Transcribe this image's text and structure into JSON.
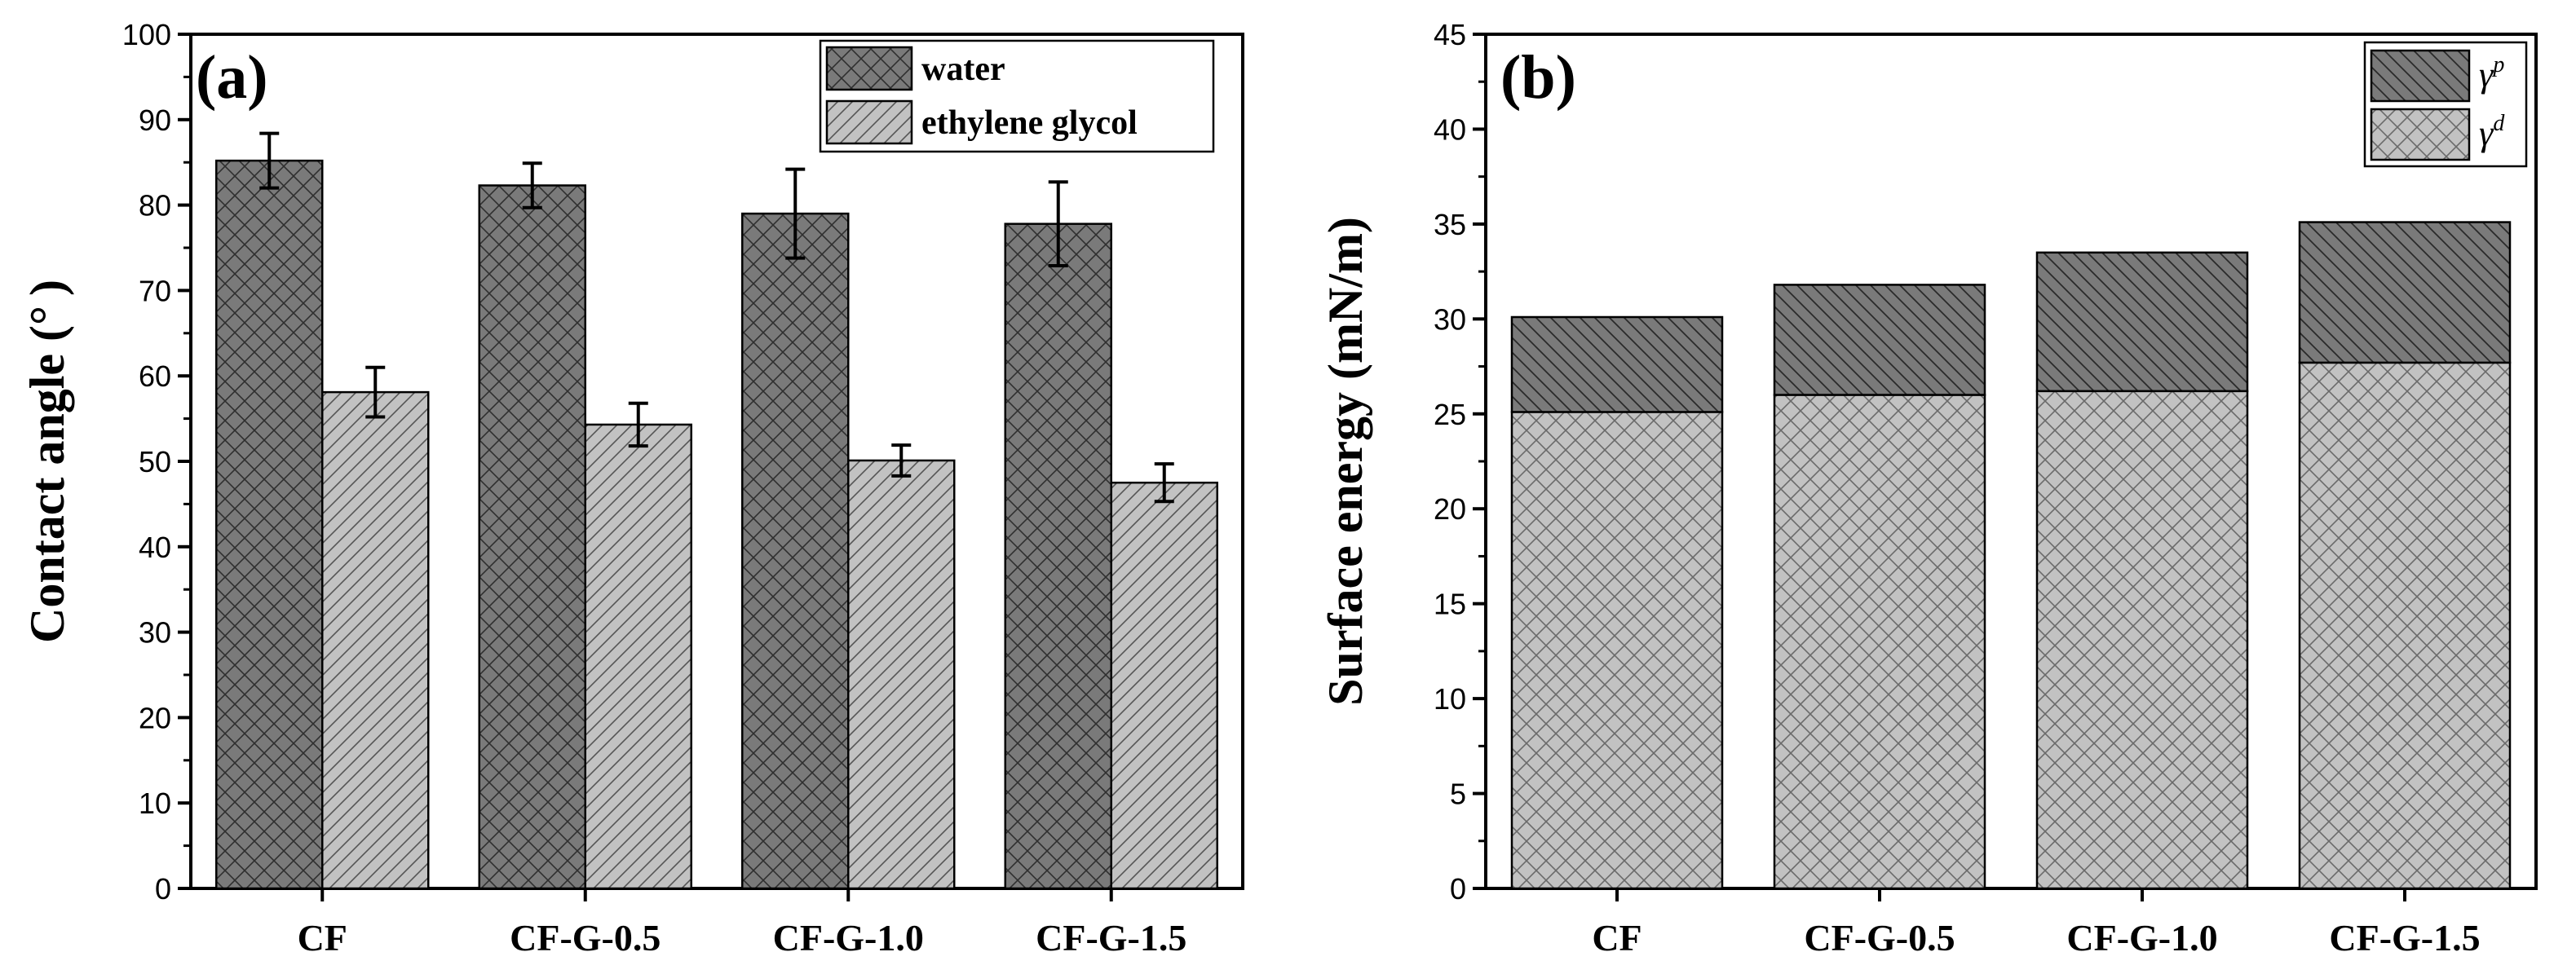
{
  "chart_data": [
    {
      "panel": "(a)",
      "type": "bar",
      "ylabel": "Contact angle (° )",
      "ylim": [
        0,
        100
      ],
      "yticks": [
        0,
        10,
        20,
        30,
        40,
        50,
        60,
        70,
        80,
        90,
        100
      ],
      "categories": [
        "CF",
        "CF-G-0.5",
        "CF-G-1.0",
        "CF-G-1.5"
      ],
      "series": [
        {
          "name": "water",
          "values": [
            85.2,
            82.3,
            79.0,
            77.8
          ],
          "errors": [
            3.2,
            2.6,
            5.2,
            4.9
          ],
          "color": "#7a7a7a"
        },
        {
          "name": "ethylene glycol",
          "values": [
            58.1,
            54.3,
            50.1,
            47.5
          ],
          "errors": [
            2.9,
            2.5,
            1.8,
            2.2
          ],
          "color": "#c2c2c2"
        }
      ],
      "legend_position": "top-right"
    },
    {
      "panel": "(b)",
      "type": "stacked-bar",
      "ylabel": "Surface energy (mN/m)",
      "ylim": [
        0,
        45
      ],
      "yticks": [
        0,
        5,
        10,
        15,
        20,
        25,
        30,
        35,
        40,
        45
      ],
      "categories": [
        "CF",
        "CF-G-0.5",
        "CF-G-1.0",
        "CF-G-1.5"
      ],
      "series": [
        {
          "name": "γd",
          "symbol": "γ",
          "sup": "d",
          "values": [
            25.1,
            26.0,
            26.2,
            27.7
          ],
          "color": "#c2c2c2"
        },
        {
          "name": "γp",
          "symbol": "γ",
          "sup": "p",
          "values": [
            5.0,
            5.8,
            7.3,
            7.4
          ],
          "color": "#7a7a7a"
        }
      ],
      "legend_position": "top-right"
    }
  ]
}
